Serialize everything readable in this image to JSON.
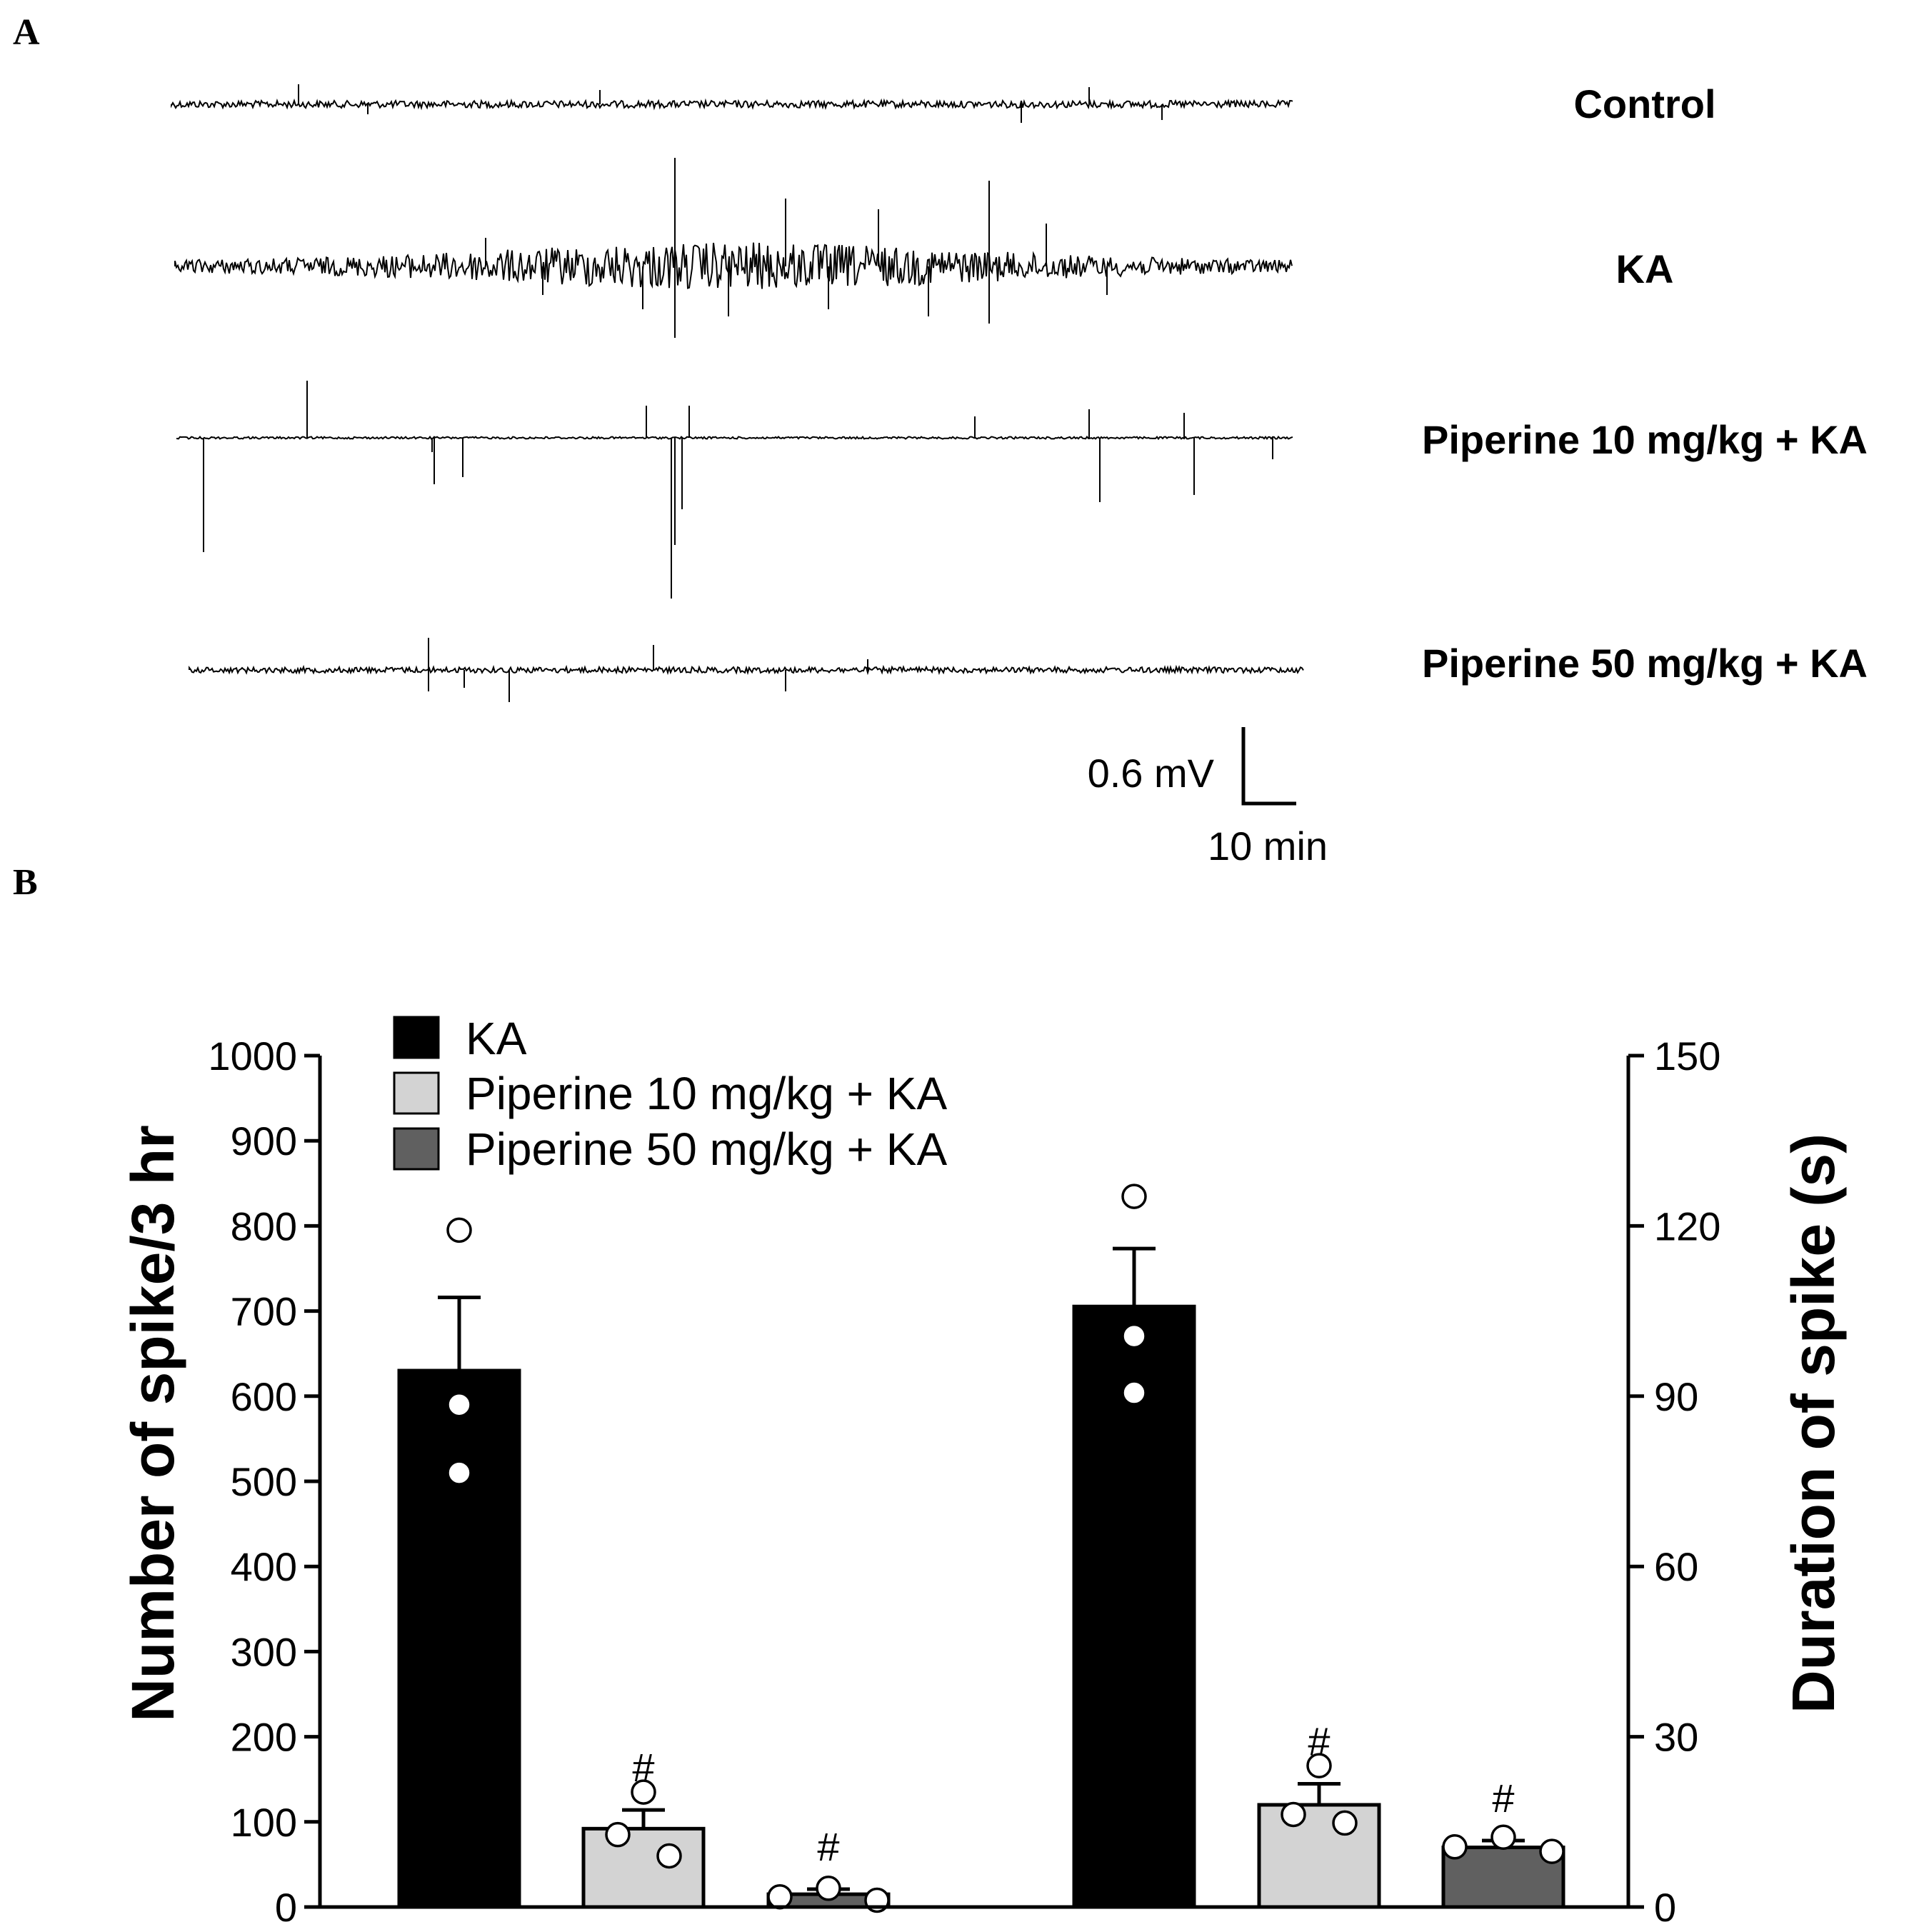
{
  "panel_a": {
    "letter": "A",
    "traces": [
      {
        "label": "Control",
        "kind": "control"
      },
      {
        "label": "KA",
        "kind": "ka"
      },
      {
        "label": "Piperine 10 mg/kg + KA",
        "kind": "pip10"
      },
      {
        "label": "Piperine 50 mg/kg + KA",
        "kind": "pip50"
      }
    ],
    "scale_bar": {
      "voltage": "0.6 mV",
      "time": "10 min"
    }
  },
  "chart_data": {
    "type": "bar",
    "panel_letter": "B",
    "left_axis": {
      "label": "Number of spike/3 hr",
      "ylim": [
        0,
        1000
      ],
      "ticks": [
        0,
        100,
        200,
        300,
        400,
        500,
        600,
        700,
        800,
        900,
        1000
      ]
    },
    "right_axis": {
      "label": "Duration of spike (s)",
      "ylim": [
        0,
        150
      ],
      "ticks": [
        0,
        30,
        60,
        90,
        120,
        150
      ]
    },
    "legend": [
      {
        "name": "KA",
        "color": "#000000"
      },
      {
        "name": "Piperine 10 mg/kg + KA",
        "color": "#d3d3d3"
      },
      {
        "name": "Piperine 50 mg/kg + KA",
        "color": "#606060"
      }
    ],
    "groups": [
      {
        "metric": "Number of spike/3 hr",
        "axis": "left",
        "bars": [
          {
            "series": "KA",
            "mean": 630,
            "sem": 86,
            "points": [
              795,
              590,
              510
            ],
            "sig": ""
          },
          {
            "series": "Piperine 10 mg/kg + KA",
            "mean": 92,
            "sem": 22,
            "points": [
              135,
              85,
              60
            ],
            "sig": "#"
          },
          {
            "series": "Piperine 50 mg/kg + KA",
            "mean": 15,
            "sem": 6,
            "points": [
              22,
              12,
              8
            ],
            "sig": "#"
          }
        ]
      },
      {
        "metric": "Duration of spike (s)",
        "axis": "right",
        "bars": [
          {
            "series": "KA",
            "mean": 105.8,
            "sem": 10.2,
            "points": [
              125.2,
              100.6,
              90.6
            ],
            "sig": ""
          },
          {
            "series": "Piperine 10 mg/kg + KA",
            "mean": 18,
            "sem": 3.7,
            "points": [
              24.9,
              16.3,
              14.8
            ],
            "sig": "#"
          },
          {
            "series": "Piperine 50 mg/kg + KA",
            "mean": 10.5,
            "sem": 1.2,
            "points": [
              12.3,
              10.6,
              9.8
            ],
            "sig": "#"
          }
        ]
      }
    ]
  }
}
